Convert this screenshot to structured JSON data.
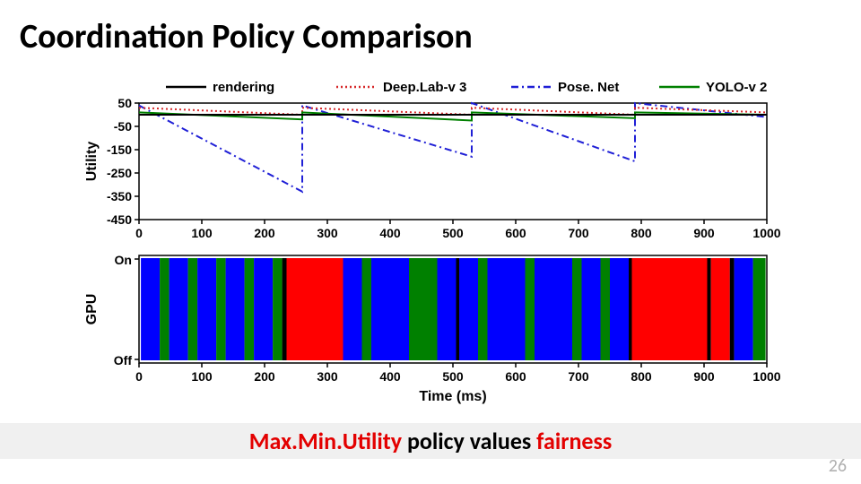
{
  "title": "Coordination Policy Comparison",
  "caption_prefix": "Max.Min.Utility",
  "caption_middle": " policy values ",
  "caption_suffix": "fairness",
  "page_number": "26",
  "legend": {
    "items": [
      {
        "label": "rendering",
        "color": "#000000",
        "style": "solid"
      },
      {
        "label": "Deep.Lab-v 3",
        "color": "#d62728",
        "style": "dotted"
      },
      {
        "label": "Pose. Net",
        "color": "#1f1fd6",
        "style": "dashdot"
      },
      {
        "label": "YOLO-v 2",
        "color": "#008000",
        "style": "solid"
      }
    ],
    "fontsize": 15
  },
  "utility_chart": {
    "type": "line",
    "xlim": [
      0,
      1000
    ],
    "xticks": [
      0,
      100,
      200,
      300,
      400,
      500,
      600,
      700,
      800,
      900,
      1000
    ],
    "ylim": [
      -450,
      50
    ],
    "yticks": [
      50,
      -50,
      -150,
      -250,
      -350,
      -450
    ],
    "ylabel": "Utility",
    "background": "#ffffff",
    "axis_color": "#000000",
    "series": {
      "rendering": {
        "color": "#000000",
        "style": "solid",
        "width": 2,
        "points": [
          [
            0,
            0
          ],
          [
            1000,
            0
          ]
        ]
      },
      "deeplab": {
        "color": "#d62728",
        "style": "dotted",
        "width": 2,
        "points": [
          [
            0,
            30
          ],
          [
            260,
            0
          ],
          [
            260,
            30
          ],
          [
            530,
            0
          ],
          [
            530,
            30
          ],
          [
            790,
            0
          ],
          [
            790,
            30
          ],
          [
            1000,
            10
          ]
        ]
      },
      "posenet": {
        "color": "#1f1fd6",
        "style": "dashdot",
        "width": 2,
        "points": [
          [
            0,
            40
          ],
          [
            260,
            -330
          ],
          [
            260,
            40
          ],
          [
            530,
            -180
          ],
          [
            530,
            50
          ],
          [
            790,
            -200
          ],
          [
            790,
            50
          ],
          [
            1000,
            -10
          ]
        ]
      },
      "yolo": {
        "color": "#008000",
        "style": "solid",
        "width": 2,
        "points": [
          [
            0,
            10
          ],
          [
            260,
            -20
          ],
          [
            260,
            10
          ],
          [
            530,
            -25
          ],
          [
            530,
            10
          ],
          [
            790,
            -15
          ],
          [
            790,
            10
          ],
          [
            1000,
            0
          ]
        ]
      }
    }
  },
  "gpu_chart": {
    "type": "bar-timeline",
    "xlim": [
      0,
      1000
    ],
    "xticks": [
      0,
      100,
      200,
      300,
      400,
      500,
      600,
      700,
      800,
      900,
      1000
    ],
    "ylabels": [
      "On",
      "Off"
    ],
    "ylabel": "GPU",
    "xlabel": "Time (ms)",
    "colors": {
      "blue": "#0000ff",
      "green": "#008000",
      "red": "#ff0000",
      "black": "#000000"
    },
    "segments": [
      {
        "x": 3,
        "w": 30,
        "c": "blue"
      },
      {
        "x": 33,
        "w": 15,
        "c": "green"
      },
      {
        "x": 48,
        "w": 30,
        "c": "blue"
      },
      {
        "x": 78,
        "w": 15,
        "c": "green"
      },
      {
        "x": 93,
        "w": 30,
        "c": "blue"
      },
      {
        "x": 123,
        "w": 15,
        "c": "green"
      },
      {
        "x": 138,
        "w": 30,
        "c": "blue"
      },
      {
        "x": 168,
        "w": 15,
        "c": "green"
      },
      {
        "x": 183,
        "w": 30,
        "c": "blue"
      },
      {
        "x": 213,
        "w": 15,
        "c": "green"
      },
      {
        "x": 228,
        "w": 7,
        "c": "black"
      },
      {
        "x": 235,
        "w": 30,
        "c": "red"
      },
      {
        "x": 265,
        "w": 30,
        "c": "red"
      },
      {
        "x": 295,
        "w": 30,
        "c": "red"
      },
      {
        "x": 325,
        "w": 30,
        "c": "blue"
      },
      {
        "x": 355,
        "w": 15,
        "c": "green"
      },
      {
        "x": 370,
        "w": 30,
        "c": "blue"
      },
      {
        "x": 400,
        "w": 30,
        "c": "blue"
      },
      {
        "x": 430,
        "w": 15,
        "c": "green"
      },
      {
        "x": 445,
        "w": 30,
        "c": "green"
      },
      {
        "x": 475,
        "w": 30,
        "c": "blue"
      },
      {
        "x": 505,
        "w": 5,
        "c": "black"
      },
      {
        "x": 510,
        "w": 30,
        "c": "blue"
      },
      {
        "x": 540,
        "w": 15,
        "c": "green"
      },
      {
        "x": 555,
        "w": 30,
        "c": "blue"
      },
      {
        "x": 585,
        "w": 30,
        "c": "blue"
      },
      {
        "x": 615,
        "w": 15,
        "c": "green"
      },
      {
        "x": 630,
        "w": 30,
        "c": "blue"
      },
      {
        "x": 660,
        "w": 30,
        "c": "blue"
      },
      {
        "x": 690,
        "w": 15,
        "c": "green"
      },
      {
        "x": 705,
        "w": 30,
        "c": "blue"
      },
      {
        "x": 735,
        "w": 15,
        "c": "green"
      },
      {
        "x": 750,
        "w": 30,
        "c": "blue"
      },
      {
        "x": 780,
        "w": 5,
        "c": "black"
      },
      {
        "x": 785,
        "w": 30,
        "c": "red"
      },
      {
        "x": 815,
        "w": 30,
        "c": "red"
      },
      {
        "x": 845,
        "w": 30,
        "c": "red"
      },
      {
        "x": 875,
        "w": 30,
        "c": "red"
      },
      {
        "x": 905,
        "w": 6,
        "c": "black"
      },
      {
        "x": 911,
        "w": 30,
        "c": "red"
      },
      {
        "x": 941,
        "w": 7,
        "c": "black"
      },
      {
        "x": 948,
        "w": 30,
        "c": "blue"
      },
      {
        "x": 978,
        "w": 20,
        "c": "green"
      }
    ]
  }
}
